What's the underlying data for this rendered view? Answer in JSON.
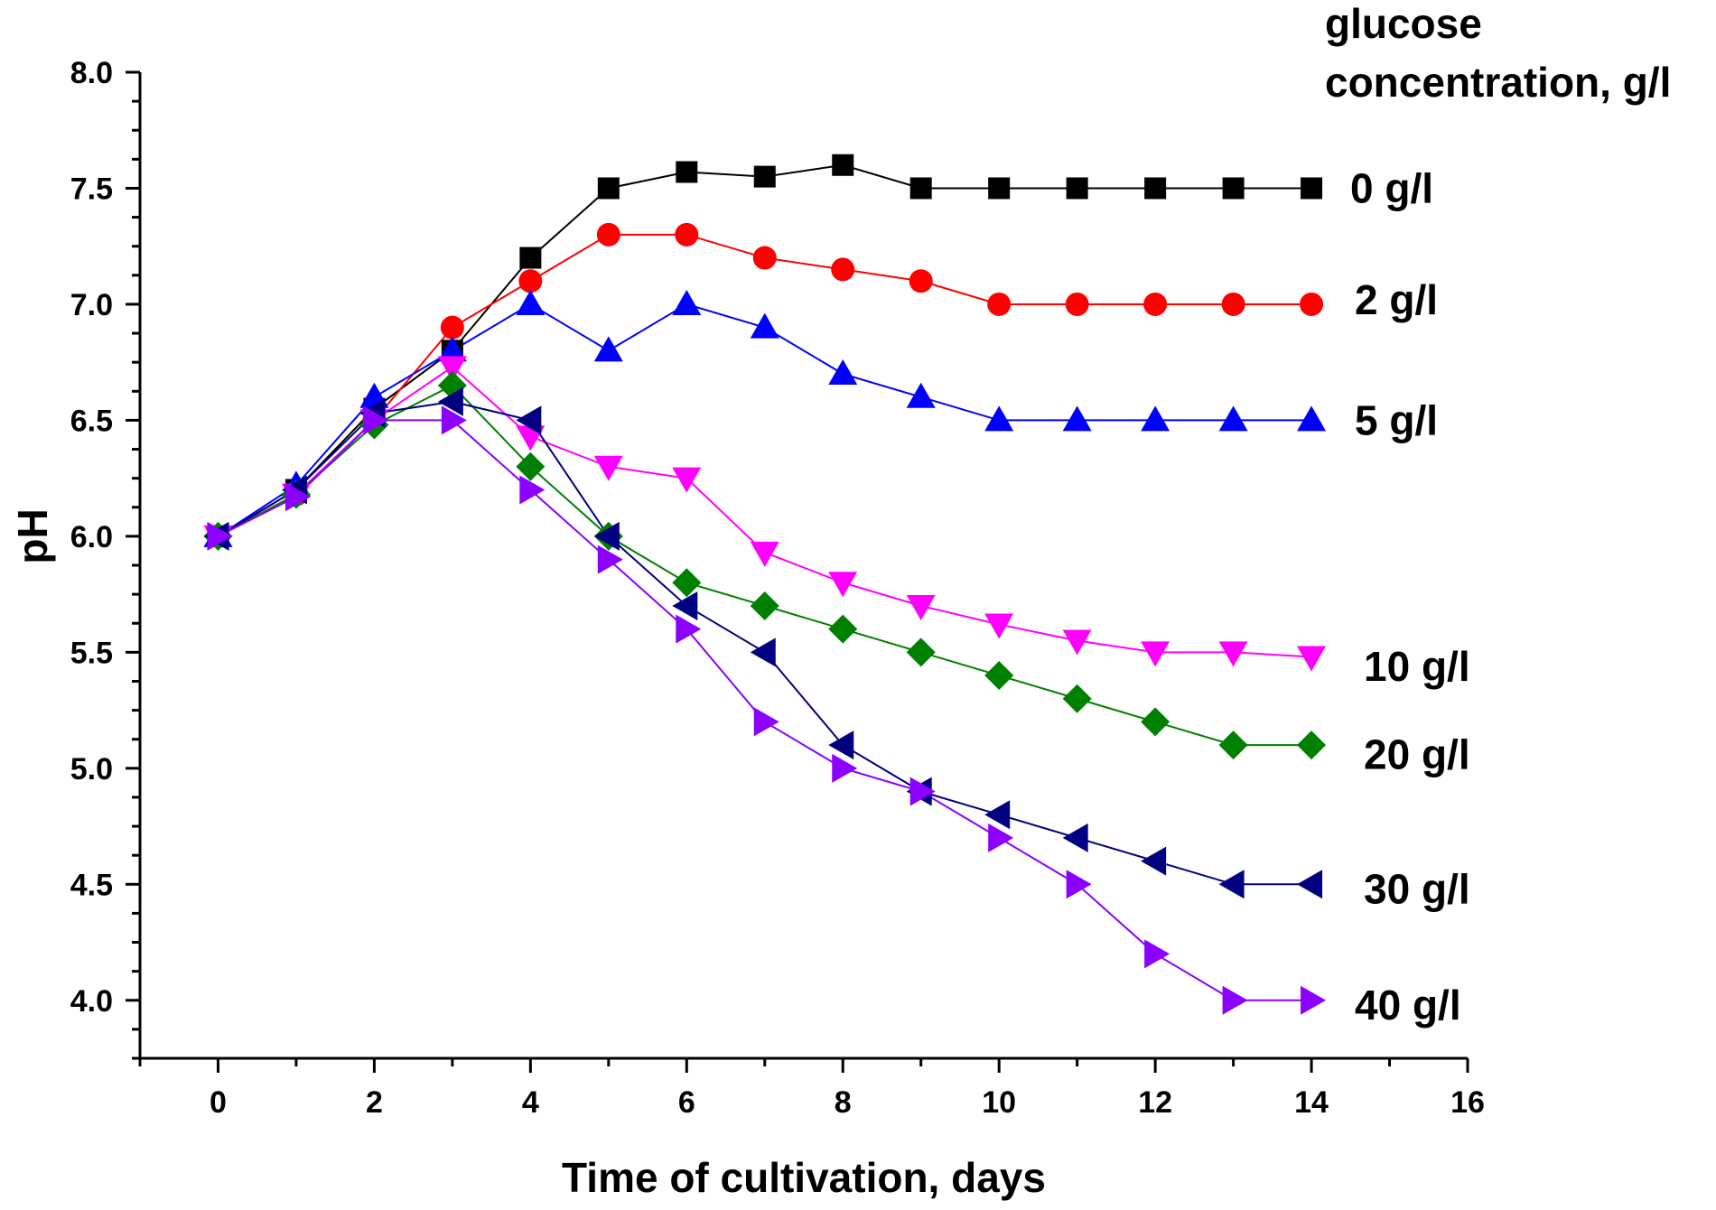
{
  "chart_data": {
    "type": "line",
    "title": "",
    "xlabel": "Time of cultivation, days",
    "ylabel": "pH",
    "xlim": [
      -1,
      16
    ],
    "ylim": [
      3.75,
      8.0
    ],
    "xticks": [
      0,
      2,
      4,
      6,
      8,
      10,
      12,
      14,
      16
    ],
    "xtick_labels": [
      "0",
      "2",
      "4",
      "6",
      "8",
      "10",
      "12",
      "14",
      "16"
    ],
    "yticks": [
      4.0,
      4.5,
      5.0,
      5.5,
      6.0,
      6.5,
      7.0,
      7.5,
      8.0
    ],
    "ytick_labels": [
      "4.0",
      "4.5",
      "5.0",
      "5.5",
      "6.0",
      "6.5",
      "7.0",
      "7.5",
      "8.0"
    ],
    "legend_title": [
      "glucose",
      "concentration, g/l"
    ],
    "legend_placement": "right",
    "grid": false,
    "x": [
      0,
      1,
      2,
      3,
      4,
      5,
      6,
      7,
      8,
      9,
      10,
      11,
      12,
      13,
      14
    ],
    "series": [
      {
        "name": "0 g/l",
        "color": "#000000",
        "marker": "square",
        "values": [
          6.0,
          6.2,
          6.55,
          6.8,
          7.2,
          7.5,
          7.57,
          7.55,
          7.6,
          7.5,
          7.5,
          7.5,
          7.5,
          7.5,
          7.5
        ]
      },
      {
        "name": "2 g/l",
        "color": "#ff0000",
        "marker": "circle",
        "values": [
          6.0,
          6.18,
          6.5,
          6.9,
          7.1,
          7.3,
          7.3,
          7.2,
          7.15,
          7.1,
          7.0,
          7.0,
          7.0,
          7.0,
          7.0
        ]
      },
      {
        "name": "5 g/l",
        "color": "#0000ff",
        "marker": "triangle-up",
        "values": [
          6.0,
          6.22,
          6.6,
          6.8,
          7.0,
          6.8,
          7.0,
          6.9,
          6.7,
          6.6,
          6.5,
          6.5,
          6.5,
          6.5,
          6.5
        ]
      },
      {
        "name": "10 g/l",
        "color": "#ff00ff",
        "marker": "triangle-down",
        "values": [
          6.0,
          6.18,
          6.5,
          6.73,
          6.43,
          6.3,
          6.25,
          5.93,
          5.8,
          5.7,
          5.62,
          5.55,
          5.5,
          5.5,
          5.48
        ]
      },
      {
        "name": "20 g/l",
        "color": "#008000",
        "marker": "diamond",
        "values": [
          6.0,
          6.18,
          6.48,
          6.65,
          6.3,
          6.0,
          5.8,
          5.7,
          5.6,
          5.5,
          5.4,
          5.3,
          5.2,
          5.1,
          5.1
        ]
      },
      {
        "name": "30 g/l",
        "color": "#000080",
        "marker": "triangle-left",
        "values": [
          6.0,
          6.2,
          6.53,
          6.58,
          6.5,
          6.0,
          5.7,
          5.5,
          5.1,
          4.9,
          4.8,
          4.7,
          4.6,
          4.5,
          4.5
        ]
      },
      {
        "name": "40 g/l",
        "color": "#8b00ff",
        "marker": "triangle-right",
        "values": [
          6.0,
          6.17,
          6.5,
          6.5,
          6.2,
          5.9,
          5.6,
          5.2,
          5.0,
          4.9,
          4.7,
          4.5,
          4.2,
          4.0,
          4.0
        ]
      }
    ]
  }
}
